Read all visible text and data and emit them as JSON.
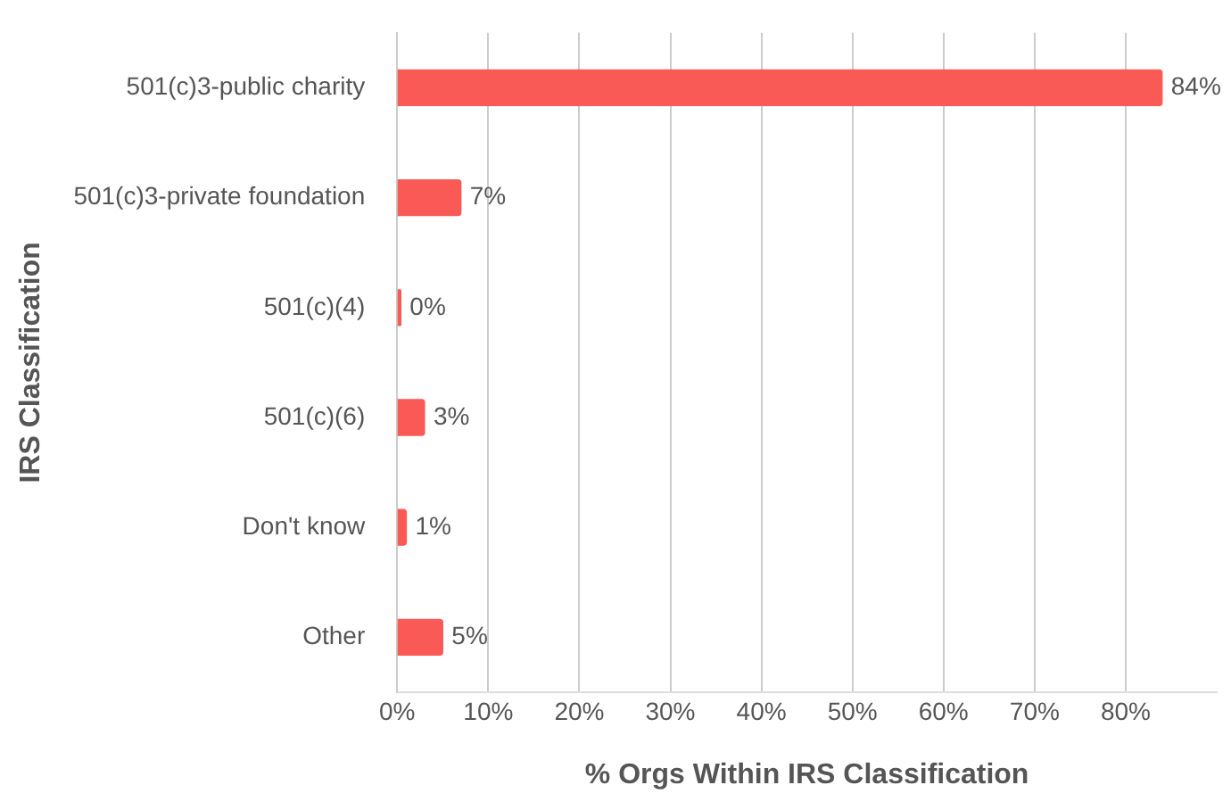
{
  "chart_data": {
    "type": "bar",
    "orientation": "horizontal",
    "categories": [
      "501(c)3-public charity",
      "501(c)3-private foundation",
      "501(c)(4)",
      "501(c)(6)",
      "Don't know",
      "Other"
    ],
    "values": [
      84,
      7,
      0.4,
      3,
      1,
      5
    ],
    "value_labels": [
      "84%",
      "7%",
      "0%",
      "3%",
      "1%",
      "5%"
    ],
    "color": "#f95a56",
    "xlabel": "% Orgs Within IRS Classification",
    "ylabel": "IRS Classification",
    "xlim": [
      0,
      90
    ],
    "xticks": [
      {
        "value": 0,
        "label": "0%"
      },
      {
        "value": 10,
        "label": "10%"
      },
      {
        "value": 20,
        "label": "20%"
      },
      {
        "value": 30,
        "label": "30%"
      },
      {
        "value": 40,
        "label": "40%"
      },
      {
        "value": 50,
        "label": "50%"
      },
      {
        "value": 60,
        "label": "60%"
      },
      {
        "value": 70,
        "label": "70%"
      },
      {
        "value": 80,
        "label": "80%"
      }
    ],
    "grid": "x"
  }
}
